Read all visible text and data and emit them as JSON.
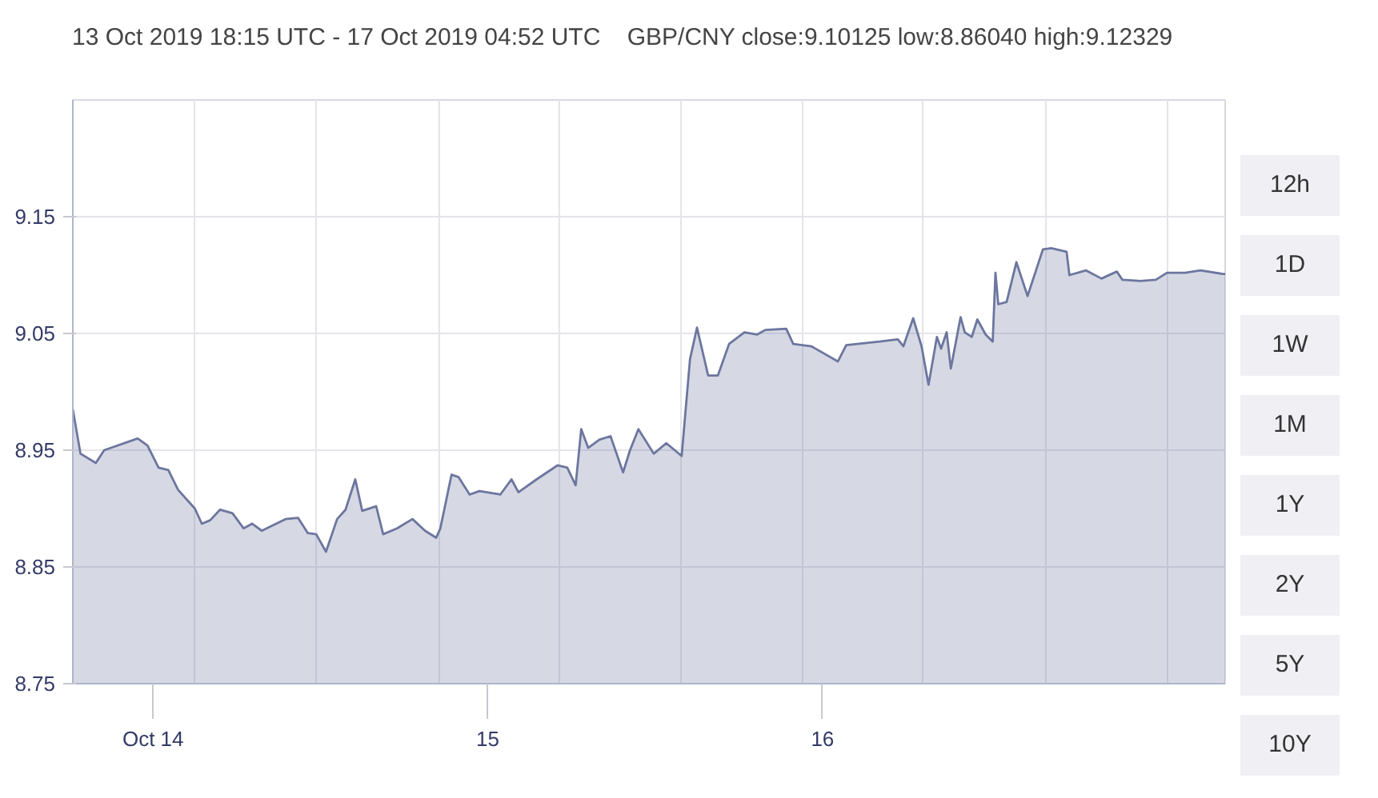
{
  "chart_data": {
    "type": "area",
    "title": "13 Oct 2019 18:15 UTC - 17 Oct 2019 04:52 UTC",
    "subtitle": "GBP/CNY close:9.10125 low:8.86040 high:9.12329",
    "x": [
      "2019-10-13T18:15",
      "2019-10-13T18:48",
      "2019-10-13T19:54",
      "2019-10-13T20:30",
      "2019-10-13T22:54",
      "2019-10-13T23:36",
      "2019-10-14T00:24",
      "2019-10-14T01:06",
      "2019-10-14T01:48",
      "2019-10-14T03:00",
      "2019-10-14T03:30",
      "2019-10-14T04:06",
      "2019-10-14T04:48",
      "2019-10-14T05:42",
      "2019-10-14T06:30",
      "2019-10-14T07:06",
      "2019-10-14T07:48",
      "2019-10-14T09:30",
      "2019-10-14T10:24",
      "2019-10-14T11:06",
      "2019-10-14T11:42",
      "2019-10-14T12:24",
      "2019-10-14T13:12",
      "2019-10-14T13:48",
      "2019-10-14T14:30",
      "2019-10-14T15:00",
      "2019-10-14T16:00",
      "2019-10-14T16:30",
      "2019-10-14T17:30",
      "2019-10-14T18:36",
      "2019-10-14T19:30",
      "2019-10-14T20:18",
      "2019-10-14T20:36",
      "2019-10-14T21:24",
      "2019-10-14T21:54",
      "2019-10-14T22:42",
      "2019-10-14T23:24",
      "2019-10-15T00:54",
      "2019-10-15T01:42",
      "2019-10-15T02:12",
      "2019-10-15T03:30",
      "2019-10-15T05:00",
      "2019-10-15T05:42",
      "2019-10-15T06:18",
      "2019-10-15T06:42",
      "2019-10-15T07:12",
      "2019-10-15T08:00",
      "2019-10-15T08:48",
      "2019-10-15T09:42",
      "2019-10-15T10:12",
      "2019-10-15T10:48",
      "2019-10-15T11:54",
      "2019-10-15T12:48",
      "2019-10-15T13:54",
      "2019-10-15T14:30",
      "2019-10-15T15:00",
      "2019-10-15T15:48",
      "2019-10-15T16:30",
      "2019-10-15T17:18",
      "2019-10-15T18:24",
      "2019-10-15T19:18",
      "2019-10-15T19:54",
      "2019-10-15T21:24",
      "2019-10-15T21:54",
      "2019-10-15T23:12",
      "2019-10-16T01:06",
      "2019-10-16T01:42",
      "2019-10-16T04:06",
      "2019-10-16T05:24",
      "2019-10-16T05:48",
      "2019-10-16T06:30",
      "2019-10-16T07:06",
      "2019-10-16T07:36",
      "2019-10-16T08:12",
      "2019-10-16T08:30",
      "2019-10-16T08:54",
      "2019-10-16T09:12",
      "2019-10-16T09:54",
      "2019-10-16T10:12",
      "2019-10-16T10:42",
      "2019-10-16T11:06",
      "2019-10-16T11:42",
      "2019-10-16T12:12",
      "2019-10-16T12:24",
      "2019-10-16T12:36",
      "2019-10-16T13:12",
      "2019-10-16T13:54",
      "2019-10-16T14:42",
      "2019-10-16T15:48",
      "2019-10-16T16:24",
      "2019-10-16T17:30",
      "2019-10-16T17:42",
      "2019-10-16T18:54",
      "2019-10-16T20:00",
      "2019-10-16T21:06",
      "2019-10-16T21:30",
      "2019-10-16T22:48",
      "2019-10-16T23:54",
      "2019-10-17T00:42",
      "2019-10-17T02:00",
      "2019-10-17T03:06",
      "2019-10-17T04:42",
      "2019-10-17T04:52"
    ],
    "series": [
      {
        "color": "#6c769e",
        "values": [
          8.985,
          8.947,
          8.939,
          8.95,
          8.96,
          8.954,
          8.935,
          8.933,
          8.916,
          8.9,
          8.887,
          8.89,
          8.899,
          8.896,
          8.883,
          8.887,
          8.881,
          8.891,
          8.892,
          8.879,
          8.878,
          8.863,
          8.891,
          8.899,
          8.925,
          8.898,
          8.902,
          8.878,
          8.883,
          8.891,
          8.881,
          8.875,
          8.883,
          8.929,
          8.927,
          8.912,
          8.915,
          8.912,
          8.925,
          8.914,
          8.925,
          8.937,
          8.935,
          8.92,
          8.968,
          8.952,
          8.959,
          8.962,
          8.931,
          8.95,
          8.968,
          8.947,
          8.956,
          8.945,
          9.028,
          9.055,
          9.014,
          9.014,
          9.041,
          9.051,
          9.049,
          9.053,
          9.054,
          9.041,
          9.039,
          9.026,
          9.04,
          9.043,
          9.045,
          9.039,
          9.063,
          9.039,
          9.006,
          9.047,
          9.037,
          9.051,
          9.02,
          9.064,
          9.051,
          9.047,
          9.062,
          9.049,
          9.043,
          9.102,
          9.075,
          9.077,
          9.111,
          9.082,
          9.122,
          9.123,
          9.12,
          9.1,
          9.104,
          9.097,
          9.103,
          9.096,
          9.095,
          9.096,
          9.102,
          9.102,
          9.104,
          9.101,
          9.101
        ]
      }
    ],
    "xlim": [
      "2019-10-13T18:15",
      "2019-10-17T04:52"
    ],
    "xticks": [
      {
        "value": "2019-10-14",
        "label": "Oct 14"
      },
      {
        "value": "2019-10-15",
        "label": "15"
      },
      {
        "value": "2019-10-16",
        "label": "16"
      },
      {
        "value": "2019-10-14T02:58",
        "label": null
      },
      {
        "value": "2019-10-14T11:40",
        "label": null
      },
      {
        "value": "2019-10-14T20:29",
        "label": null
      },
      {
        "value": "2019-10-15T05:05",
        "label": null
      },
      {
        "value": "2019-10-15T13:54",
        "label": null
      },
      {
        "value": "2019-10-15T22:36",
        "label": null
      },
      {
        "value": "2019-10-16T07:12",
        "label": null
      },
      {
        "value": "2019-10-16T16:00",
        "label": null
      },
      {
        "value": "2019-10-17T00:42",
        "label": null
      }
    ],
    "ylim": [
      8.75,
      9.25
    ],
    "yticks": [
      8.75,
      8.85,
      8.95,
      9.05,
      9.15
    ],
    "grid": true,
    "annotations": [
      "12h",
      "1D",
      "1W",
      "1M",
      "1Y",
      "2Y",
      "5Y",
      "10Y"
    ]
  }
}
